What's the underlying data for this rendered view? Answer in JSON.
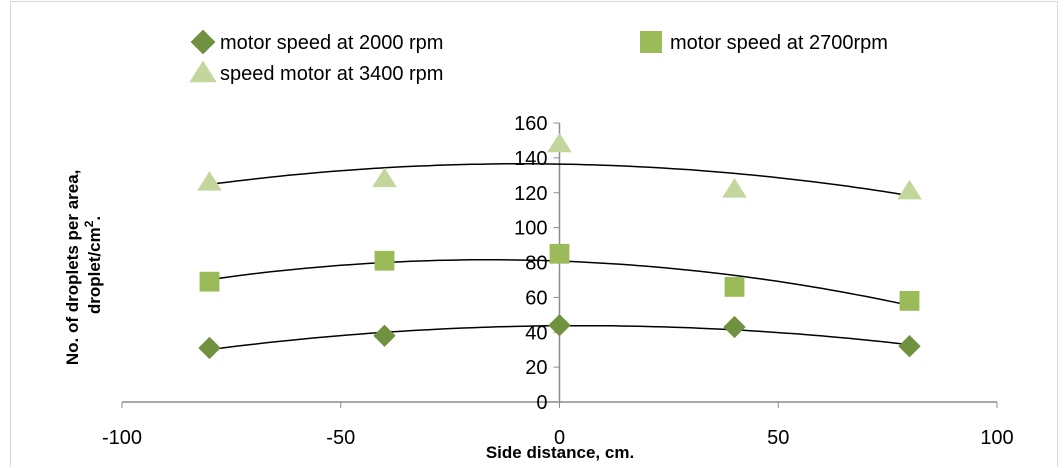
{
  "chart_data": {
    "type": "scatter",
    "xlabel": "Side distance, cm.",
    "ylabel_line1": "No. of droplets per area,",
    "ylabel_line2_base": "droplet/cm",
    "ylabel_line2_sup": "2",
    "ylabel_line2_tail": ".",
    "xlim": [
      -100,
      100
    ],
    "ylim": [
      0,
      160
    ],
    "xticks": [
      -100,
      -50,
      0,
      50,
      100
    ],
    "yticks": [
      0,
      20,
      40,
      60,
      80,
      100,
      120,
      140,
      160
    ],
    "x": [
      -80,
      -40,
      0,
      40,
      80
    ],
    "trendline": "polynomial",
    "legend_position": "top",
    "grid": false,
    "series": [
      {
        "name": "motor speed at 2000 rpm",
        "marker": "diamond",
        "color": "#6f9140",
        "values": [
          31,
          38,
          44,
          43,
          32
        ]
      },
      {
        "name": "motor speed at 2700rpm",
        "marker": "square",
        "color": "#9bbb59",
        "values": [
          69,
          81,
          85,
          66,
          58
        ]
      },
      {
        "name": "speed motor at 3400 rpm",
        "marker": "triangle",
        "color": "#c3d69b",
        "values": [
          126,
          128,
          148,
          122,
          121
        ]
      }
    ],
    "trendline_color": "#000000",
    "axis_color": "#8c8c8c"
  }
}
